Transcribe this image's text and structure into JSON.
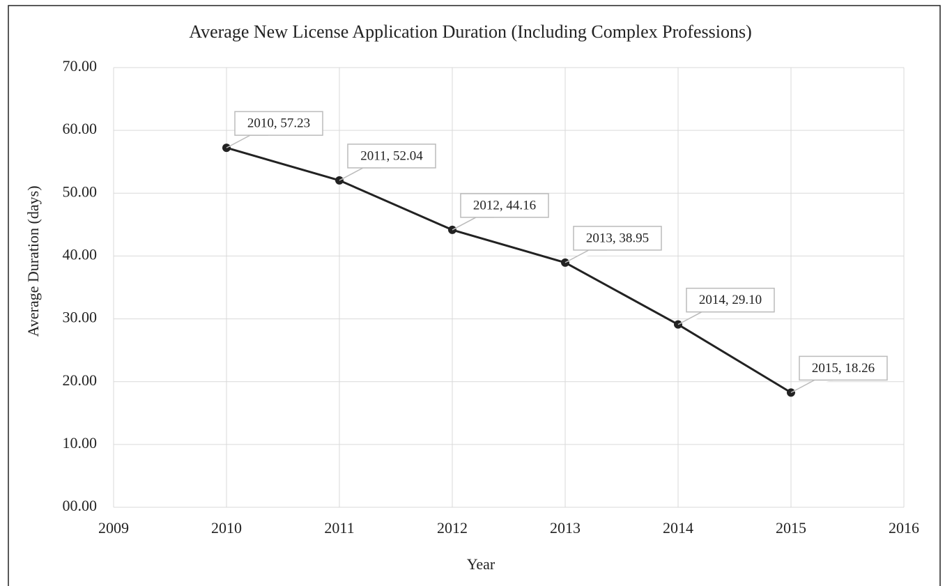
{
  "chart_data": {
    "type": "line",
    "title": "Average New License Application Duration (Including Complex Professions)",
    "x_label": "Year",
    "y_label": "Average Duration (days)",
    "x": [
      2010,
      2011,
      2012,
      2013,
      2014,
      2015
    ],
    "series": [
      {
        "color": "#222222",
        "values": [
          57.23,
          52.04,
          44.16,
          38.95,
          29.1,
          18.26
        ],
        "value_labels": [
          "2010, 57.23",
          "2011, 52.04",
          "2012, 44.16",
          "2013, 38.95",
          "2014, 29.10",
          "2015, 18.26"
        ]
      }
    ],
    "xlim": [
      2009,
      2016
    ],
    "xticks": [
      2009,
      2010,
      2011,
      2012,
      2013,
      2014,
      2015,
      2016
    ],
    "ylim": [
      0,
      70
    ],
    "yticks": [
      {
        "value": 0,
        "label": "00.00"
      },
      {
        "value": 10,
        "label": "10.00"
      },
      {
        "value": 20,
        "label": "20.00"
      },
      {
        "value": 30,
        "label": "30.00"
      },
      {
        "value": 40,
        "label": "40.00"
      },
      {
        "value": 50,
        "label": "50.00"
      },
      {
        "value": 60,
        "label": "60.00"
      },
      {
        "value": 70,
        "label": "70.00"
      }
    ],
    "grid": true
  }
}
